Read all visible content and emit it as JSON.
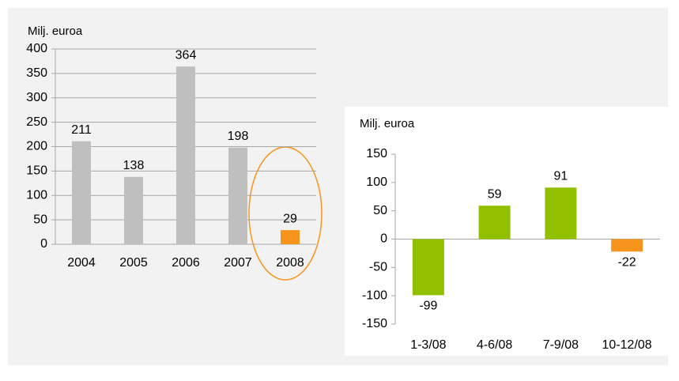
{
  "chart_data": [
    {
      "type": "bar",
      "y_label": "Milj. euroa",
      "categories": [
        "2004",
        "2005",
        "2006",
        "2007",
        "2008"
      ],
      "values": [
        211,
        138,
        364,
        198,
        29
      ],
      "colors": [
        "#bfbfbf",
        "#bfbfbf",
        "#bfbfbf",
        "#bfbfbf",
        "#f7941d"
      ],
      "ylim": [
        0,
        400
      ],
      "yticks": [
        0,
        50,
        100,
        150,
        200,
        250,
        300,
        350,
        400
      ],
      "grid": true
    },
    {
      "type": "bar",
      "y_label": "Milj. euroa",
      "categories": [
        "1-3/08",
        "4-6/08",
        "7-9/08",
        "10-12/08"
      ],
      "values": [
        -99,
        59,
        91,
        -22
      ],
      "colors": [
        "#92c000",
        "#92c000",
        "#92c000",
        "#f7941d"
      ],
      "ylim": [
        -150,
        150
      ],
      "yticks": [
        -150,
        -100,
        -50,
        0,
        50,
        100,
        150
      ],
      "grid": false
    }
  ]
}
